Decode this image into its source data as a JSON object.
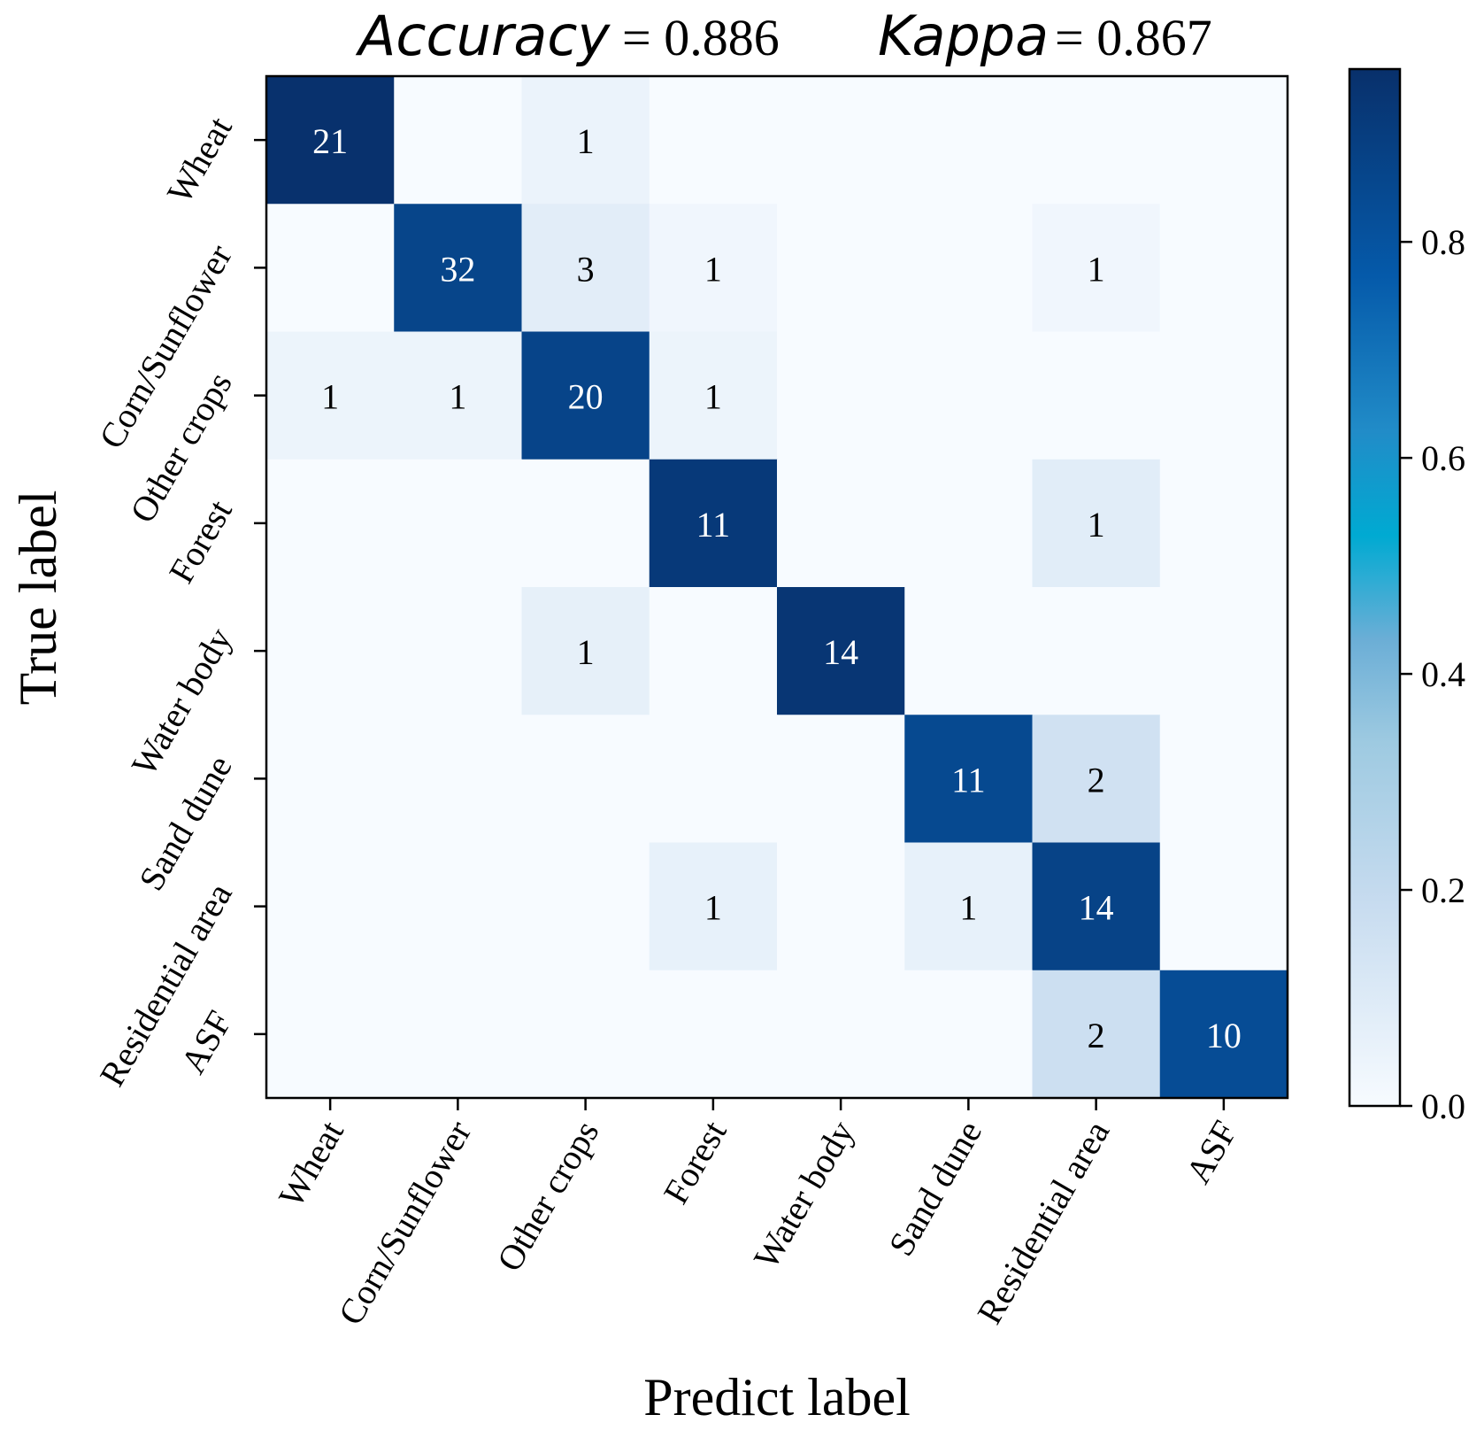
{
  "chart_data": {
    "type": "heatmap",
    "title_parts": [
      {
        "label": "Accuracy",
        "value": "= 0.886"
      },
      {
        "label": "Kappa",
        "value": "= 0.867"
      }
    ],
    "xlabel": "Predict label",
    "ylabel": "True label",
    "categories": [
      "Wheat",
      "Corn/Sunflower",
      "Other crops",
      "Forest",
      "Water body",
      "Sand dune",
      "Residential area",
      "ASF"
    ],
    "matrix": [
      [
        21,
        0,
        1,
        0,
        0,
        0,
        0,
        0
      ],
      [
        0,
        32,
        3,
        1,
        0,
        0,
        1,
        0
      ],
      [
        1,
        1,
        20,
        1,
        0,
        0,
        0,
        0
      ],
      [
        0,
        0,
        0,
        11,
        0,
        0,
        1,
        0
      ],
      [
        0,
        0,
        1,
        0,
        14,
        0,
        0,
        0
      ],
      [
        0,
        0,
        0,
        0,
        0,
        11,
        2,
        0
      ],
      [
        0,
        0,
        0,
        1,
        0,
        1,
        14,
        0
      ],
      [
        0,
        0,
        0,
        0,
        0,
        0,
        2,
        10
      ]
    ],
    "colorbar": {
      "ticks": [
        "0.0",
        "0.2",
        "0.4",
        "0.6",
        "0.8"
      ],
      "range": [
        0,
        0.96
      ],
      "colormap": "Blues"
    },
    "colors": {
      "text_dark": "#000000",
      "text_light": "#ffffff"
    },
    "grid": false
  }
}
